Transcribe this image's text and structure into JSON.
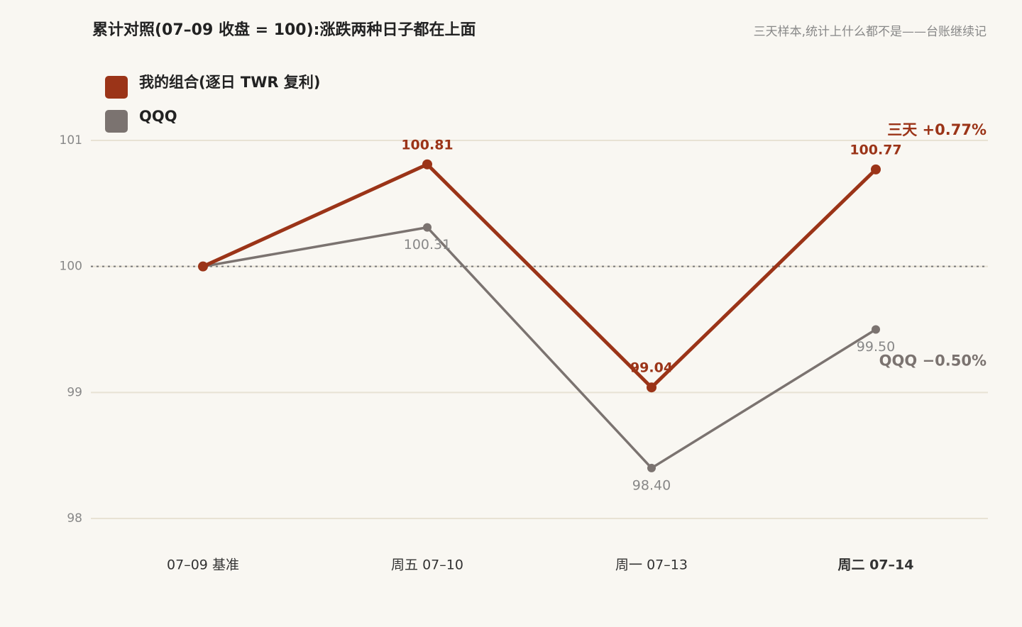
{
  "chart_data": {
    "type": "line",
    "title": "累计对照(07–09 收盘 = 100):涨跌两种日子都在上面",
    "subtitle": "三天样本,统计上什么都不是——台账继续记",
    "categories": [
      "07–09 基准",
      "周五 07–10",
      "周一 07–13",
      "周二 07–14"
    ],
    "series": [
      {
        "name": "我的组合(逐日 TWR 复利)",
        "color": "#9b3418",
        "values": [
          100,
          100.81,
          99.04,
          100.77
        ],
        "value_labels": [
          null,
          "100.81",
          "99.04",
          "100.77"
        ],
        "end_label": "三天 +0.77%"
      },
      {
        "name": "QQQ",
        "color": "#7b7370",
        "values": [
          100,
          100.31,
          98.4,
          99.5
        ],
        "value_labels": [
          null,
          "100.31",
          "98.40",
          "99.50"
        ],
        "end_label": "QQQ −0.50%"
      }
    ],
    "ylim": [
      98,
      101
    ],
    "yticks": [
      98,
      99,
      100,
      101
    ],
    "grid": true,
    "reference_line": 100
  }
}
